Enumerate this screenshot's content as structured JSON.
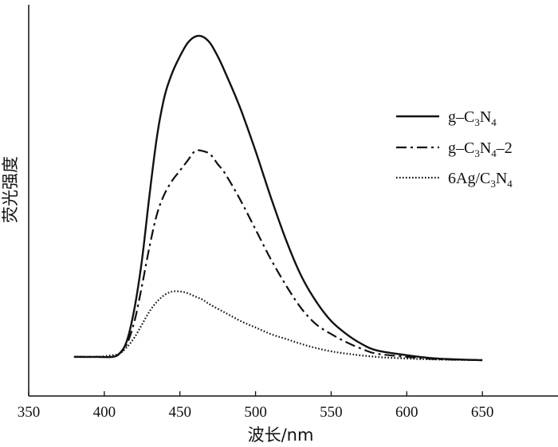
{
  "chart_data": {
    "type": "line",
    "title": "",
    "xlabel": "波长/nm",
    "ylabel": "荧光强度",
    "xlim": [
      350,
      700
    ],
    "ylim": [
      0,
      1.0
    ],
    "xticks": [
      350,
      400,
      450,
      500,
      550,
      600,
      650
    ],
    "y_tick_labels": false,
    "grid": false,
    "legend_position": "top-right",
    "colors": {
      "line": "#111111",
      "axis": "#111111"
    },
    "series": [
      {
        "name": "g-C3N4",
        "name_parts": {
          "pre": "g–C",
          "sub1": "3",
          "mid": "N",
          "sub2": "4",
          "post": ""
        },
        "style": "solid",
        "x": [
          380,
          395,
          405,
          410,
          415,
          420,
          425,
          430,
          435,
          440,
          445,
          450,
          455,
          460,
          465,
          470,
          475,
          480,
          490,
          500,
          510,
          520,
          530,
          540,
          550,
          560,
          570,
          580,
          600,
          620,
          650
        ],
        "y": [
          0.02,
          0.02,
          0.02,
          0.03,
          0.07,
          0.17,
          0.32,
          0.52,
          0.7,
          0.82,
          0.89,
          0.94,
          0.98,
          1.0,
          1.0,
          0.98,
          0.94,
          0.89,
          0.78,
          0.65,
          0.51,
          0.38,
          0.27,
          0.19,
          0.13,
          0.09,
          0.06,
          0.04,
          0.025,
          0.015,
          0.01
        ]
      },
      {
        "name": "g-C3N4-2",
        "name_parts": {
          "pre": "g–C",
          "sub1": "3",
          "mid": "N",
          "sub2": "4",
          "post": "–2"
        },
        "style": "dashdot",
        "x": [
          380,
          395,
          405,
          410,
          415,
          420,
          425,
          430,
          435,
          440,
          445,
          450,
          455,
          460,
          465,
          470,
          475,
          480,
          490,
          500,
          510,
          520,
          530,
          540,
          550,
          560,
          570,
          580,
          600,
          620,
          650
        ],
        "y": [
          0.02,
          0.02,
          0.02,
          0.03,
          0.06,
          0.13,
          0.24,
          0.36,
          0.46,
          0.52,
          0.56,
          0.59,
          0.62,
          0.65,
          0.65,
          0.64,
          0.61,
          0.58,
          0.5,
          0.41,
          0.32,
          0.24,
          0.17,
          0.12,
          0.09,
          0.065,
          0.045,
          0.03,
          0.02,
          0.013,
          0.01
        ]
      },
      {
        "name": "6Ag/C3N4",
        "name_parts": {
          "pre": "6Ag/C",
          "sub1": "3",
          "mid": "N",
          "sub2": "4",
          "post": ""
        },
        "style": "dotted",
        "x": [
          380,
          395,
          405,
          410,
          415,
          420,
          425,
          430,
          435,
          440,
          445,
          450,
          455,
          460,
          465,
          470,
          480,
          490,
          500,
          510,
          520,
          530,
          540,
          550,
          560,
          580,
          600,
          620,
          650
        ],
        "y": [
          0.02,
          0.02,
          0.025,
          0.03,
          0.05,
          0.08,
          0.12,
          0.16,
          0.19,
          0.21,
          0.22,
          0.22,
          0.215,
          0.205,
          0.195,
          0.18,
          0.155,
          0.13,
          0.11,
          0.09,
          0.075,
          0.06,
          0.047,
          0.037,
          0.03,
          0.02,
          0.015,
          0.012,
          0.01
        ]
      }
    ]
  }
}
